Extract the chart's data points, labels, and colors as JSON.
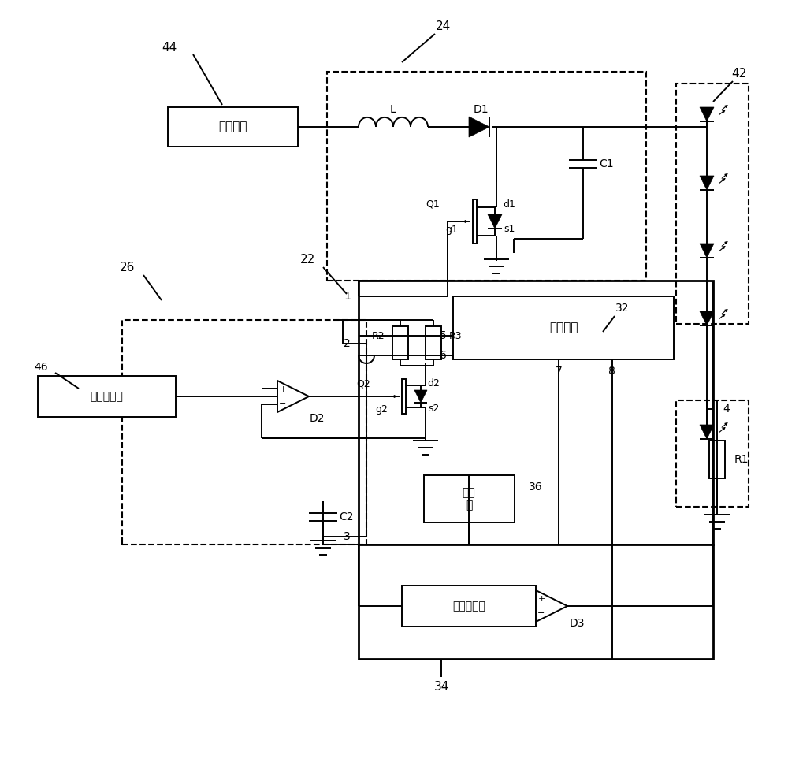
{
  "bg_color": "#ffffff",
  "lc": "#000000",
  "lw": 1.4,
  "figsize": [
    10.0,
    9.91
  ],
  "dpi": 100,
  "xlim": [
    0,
    10
  ],
  "ylim": [
    0,
    9.91
  ]
}
